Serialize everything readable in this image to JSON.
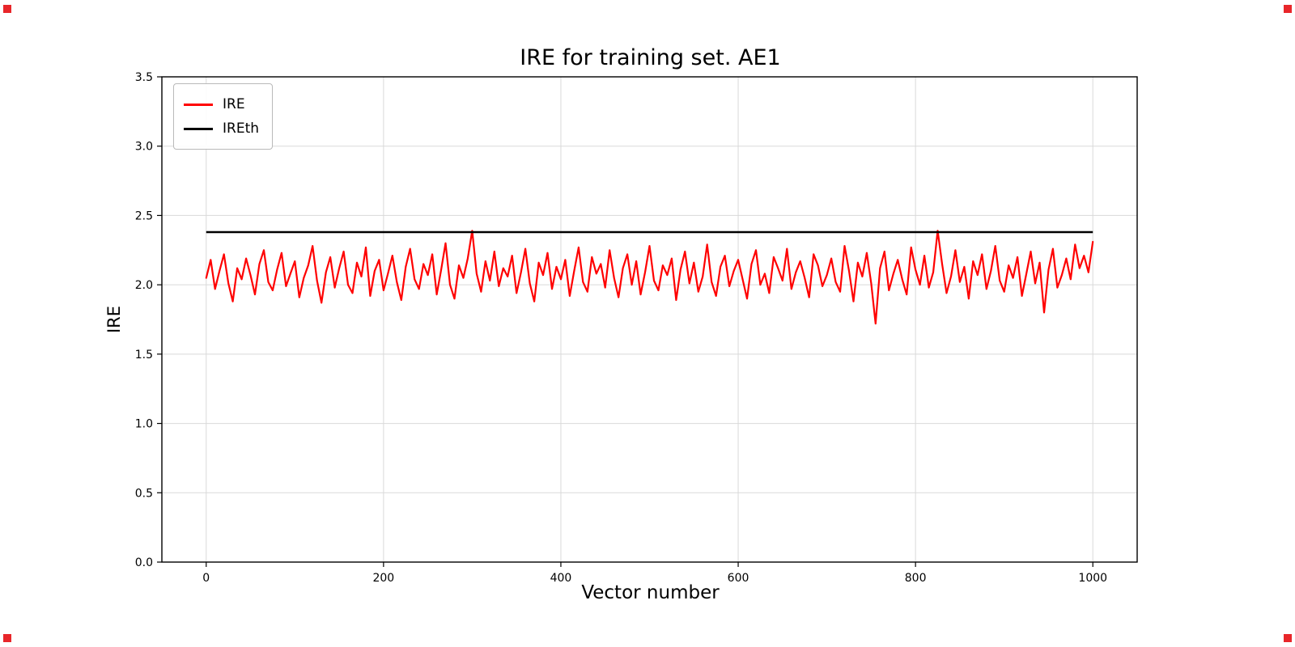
{
  "figure": {
    "background": "#ffffff"
  },
  "title": "IRE for training set. AE1",
  "axes": {
    "xlabel": "Vector number",
    "ylabel": "IRE"
  },
  "legend": {
    "items": [
      {
        "label": "IRE",
        "color": "#ff0000",
        "linewidth": 3
      },
      {
        "label": "IREth",
        "color": "#000000",
        "linewidth": 3
      }
    ],
    "position": "upper left"
  },
  "chart_data": {
    "type": "line",
    "title": "IRE for training set. AE1",
    "xlabel": "Vector number",
    "ylabel": "IRE",
    "xlim": [
      -50,
      1050
    ],
    "ylim": [
      0,
      3.5
    ],
    "xticks": [
      0,
      200,
      400,
      600,
      800,
      1000
    ],
    "xtick_labels": [
      "0",
      "200",
      "400",
      "600",
      "800",
      "1000"
    ],
    "yticks": [
      0,
      0.5,
      1,
      1.5,
      2,
      2.5,
      3,
      3.5
    ],
    "ytick_labels": [
      "0.0",
      "0.5",
      "1.0",
      "1.5",
      "2.0",
      "2.5",
      "3.0",
      "3.5"
    ],
    "grid": true,
    "grid_color": "#d9d9d9",
    "legend_position": "upper left",
    "threshold": {
      "name": "IREth",
      "value": 2.38,
      "color": "#000000",
      "x_range": [
        0,
        1000
      ]
    },
    "series": [
      {
        "name": "IRE",
        "color": "#ff0000",
        "x_start": 0,
        "x_step": 5,
        "y": [
          2.05,
          2.18,
          1.97,
          2.1,
          2.22,
          2.01,
          1.88,
          2.12,
          2.04,
          2.19,
          2.07,
          1.93,
          2.15,
          2.25,
          2.02,
          1.96,
          2.11,
          2.23,
          1.99,
          2.08,
          2.17,
          1.91,
          2.05,
          2.14,
          2.28,
          2.03,
          1.87,
          2.09,
          2.2,
          1.98,
          2.12,
          2.24,
          2.0,
          1.94,
          2.16,
          2.06,
          2.27,
          1.92,
          2.1,
          2.18,
          1.96,
          2.08,
          2.21,
          2.02,
          1.89,
          2.13,
          2.26,
          2.04,
          1.97,
          2.15,
          2.07,
          2.22,
          1.93,
          2.11,
          2.3,
          2.0,
          1.9,
          2.14,
          2.05,
          2.19,
          2.39,
          2.08,
          1.95,
          2.17,
          2.03,
          2.24,
          1.99,
          2.12,
          2.06,
          2.21,
          1.94,
          2.09,
          2.26,
          2.01,
          1.88,
          2.16,
          2.07,
          2.23,
          1.97,
          2.13,
          2.04,
          2.18,
          1.92,
          2.1,
          2.27,
          2.02,
          1.95,
          2.2,
          2.08,
          2.15,
          1.98,
          2.25,
          2.05,
          1.91,
          2.12,
          2.22,
          2.0,
          2.17,
          1.93,
          2.09,
          2.28,
          2.03,
          1.96,
          2.14,
          2.07,
          2.19,
          1.89,
          2.11,
          2.24,
          2.01,
          2.16,
          1.95,
          2.06,
          2.29,
          2.02,
          1.92,
          2.13,
          2.21,
          1.99,
          2.1,
          2.18,
          2.04,
          1.9,
          2.15,
          2.25,
          2.0,
          2.08,
          1.94,
          2.2,
          2.12,
          2.03,
          2.26,
          1.97,
          2.09,
          2.17,
          2.05,
          1.91,
          2.22,
          2.14,
          1.99,
          2.07,
          2.19,
          2.02,
          1.95,
          2.28,
          2.1,
          1.88,
          2.16,
          2.06,
          2.23,
          2.01,
          1.72,
          2.12,
          2.24,
          1.96,
          2.08,
          2.18,
          2.04,
          1.93,
          2.27,
          2.11,
          2.0,
          2.21,
          1.98,
          2.09,
          2.39,
          2.15,
          1.94,
          2.06,
          2.25,
          2.02,
          2.13,
          1.9,
          2.17,
          2.07,
          2.22,
          1.97,
          2.1,
          2.28,
          2.03,
          1.95,
          2.14,
          2.05,
          2.2,
          1.92,
          2.08,
          2.24,
          2.01,
          2.16,
          1.8,
          2.11,
          2.26,
          1.98,
          2.07,
          2.19,
          2.04,
          2.29,
          2.12,
          2.21,
          2.09,
          2.31
        ]
      }
    ]
  }
}
